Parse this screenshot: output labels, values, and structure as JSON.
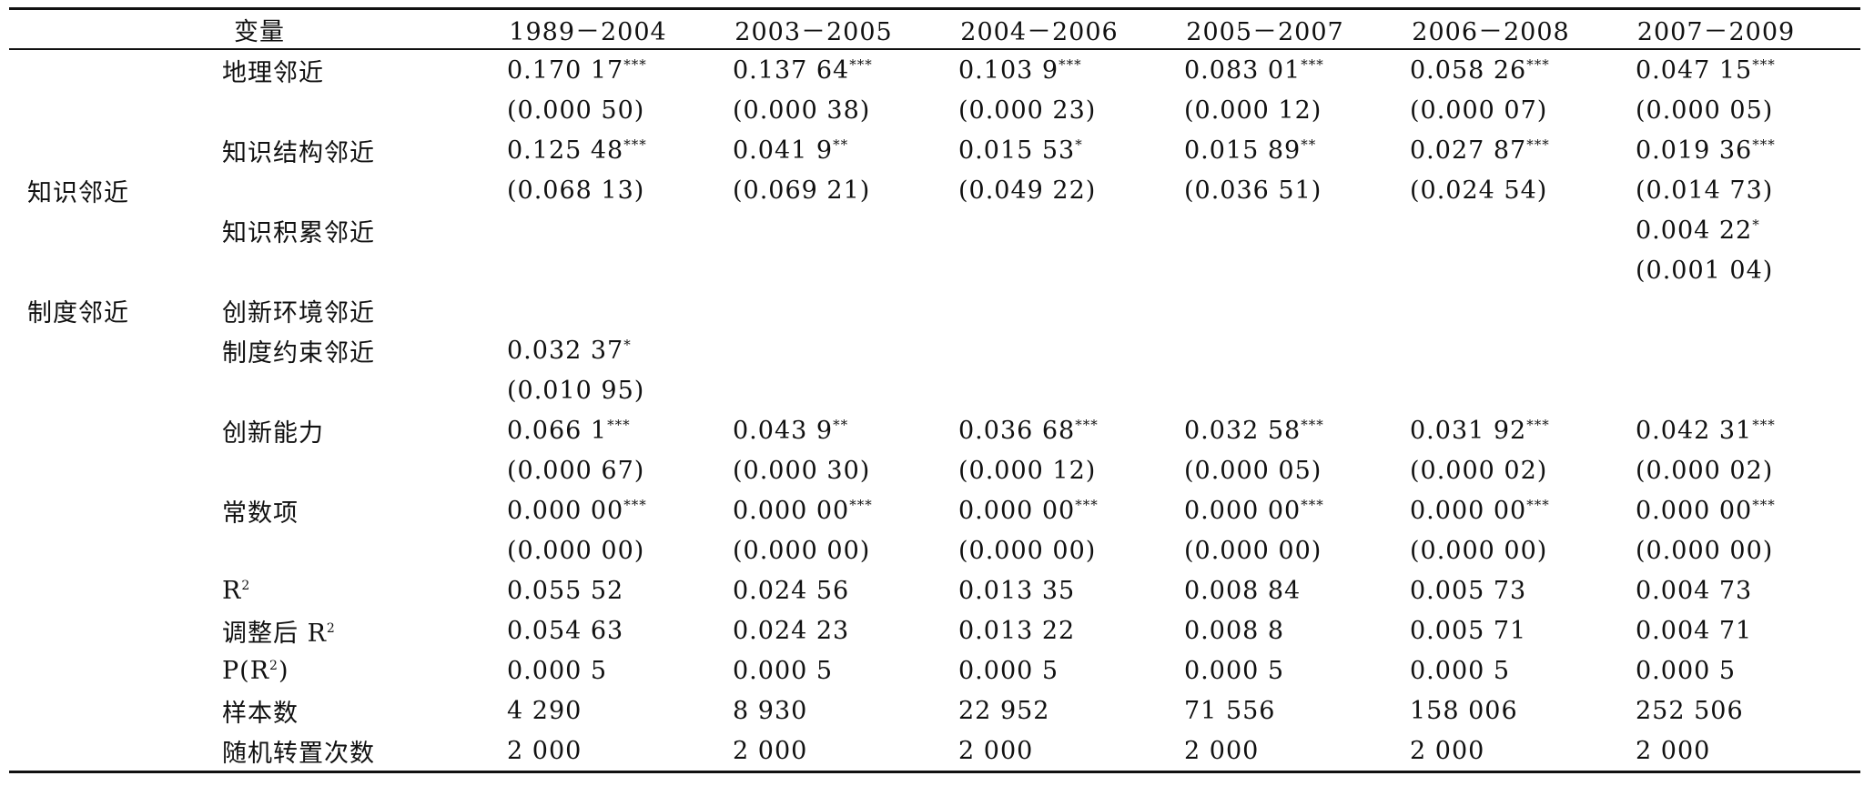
{
  "header": {
    "variable": "变量",
    "periods": [
      "1989－2004",
      "2003－2005",
      "2004－2006",
      "2005－2007",
      "2006－2008",
      "2007－2009"
    ]
  },
  "groups": {
    "knowledge": "知识邻近",
    "institution": "制度邻近"
  },
  "rows": [
    {
      "label": "地理邻近",
      "cells": [
        {
          "v": "0.170 17",
          "s": "***"
        },
        {
          "v": "0.137 64",
          "s": "***"
        },
        {
          "v": "0.103 9",
          "s": "***"
        },
        {
          "v": "0.083 01",
          "s": "***"
        },
        {
          "v": "0.058 26",
          "s": "***"
        },
        {
          "v": "0.047 15",
          "s": "***"
        }
      ]
    },
    {
      "label": "",
      "cells": [
        {
          "v": "(0.000 50)",
          "s": ""
        },
        {
          "v": "(0.000 38)",
          "s": ""
        },
        {
          "v": "(0.000 23)",
          "s": ""
        },
        {
          "v": "(0.000 12)",
          "s": ""
        },
        {
          "v": "(0.000 07)",
          "s": ""
        },
        {
          "v": "(0.000 05)",
          "s": ""
        }
      ]
    },
    {
      "label": "知识结构邻近",
      "cells": [
        {
          "v": "0.125 48",
          "s": "***"
        },
        {
          "v": "0.041 9",
          "s": "**"
        },
        {
          "v": "0.015 53",
          "s": "*"
        },
        {
          "v": "0.015 89",
          "s": "**"
        },
        {
          "v": "0.027 87",
          "s": "***"
        },
        {
          "v": "0.019 36",
          "s": "***"
        }
      ]
    },
    {
      "label": "",
      "cells": [
        {
          "v": "(0.068 13)",
          "s": ""
        },
        {
          "v": "(0.069 21)",
          "s": ""
        },
        {
          "v": "(0.049 22)",
          "s": ""
        },
        {
          "v": "(0.036 51)",
          "s": ""
        },
        {
          "v": "(0.024 54)",
          "s": ""
        },
        {
          "v": "(0.014 73)",
          "s": ""
        }
      ]
    },
    {
      "label": "知识积累邻近",
      "cells": [
        {
          "v": "",
          "s": ""
        },
        {
          "v": "",
          "s": ""
        },
        {
          "v": "",
          "s": ""
        },
        {
          "v": "",
          "s": ""
        },
        {
          "v": "",
          "s": ""
        },
        {
          "v": "0.004 22",
          "s": "*"
        }
      ]
    },
    {
      "label": "",
      "cells": [
        {
          "v": "",
          "s": ""
        },
        {
          "v": "",
          "s": ""
        },
        {
          "v": "",
          "s": ""
        },
        {
          "v": "",
          "s": ""
        },
        {
          "v": "",
          "s": ""
        },
        {
          "v": "(0.001 04)",
          "s": ""
        }
      ]
    },
    {
      "label": "创新环境邻近",
      "cells": [
        {
          "v": "",
          "s": ""
        },
        {
          "v": "",
          "s": ""
        },
        {
          "v": "",
          "s": ""
        },
        {
          "v": "",
          "s": ""
        },
        {
          "v": "",
          "s": ""
        },
        {
          "v": "",
          "s": ""
        }
      ]
    },
    {
      "label": "制度约束邻近",
      "cells": [
        {
          "v": "0.032 37",
          "s": "*"
        },
        {
          "v": "",
          "s": ""
        },
        {
          "v": "",
          "s": ""
        },
        {
          "v": "",
          "s": ""
        },
        {
          "v": "",
          "s": ""
        },
        {
          "v": "",
          "s": ""
        }
      ]
    },
    {
      "label": "",
      "cells": [
        {
          "v": "(0.010 95)",
          "s": ""
        },
        {
          "v": "",
          "s": ""
        },
        {
          "v": "",
          "s": ""
        },
        {
          "v": "",
          "s": ""
        },
        {
          "v": "",
          "s": ""
        },
        {
          "v": "",
          "s": ""
        }
      ]
    },
    {
      "label": "创新能力",
      "cells": [
        {
          "v": "0.066 1",
          "s": "***"
        },
        {
          "v": "0.043 9",
          "s": "**"
        },
        {
          "v": "0.036 68",
          "s": "***"
        },
        {
          "v": "0.032 58",
          "s": "***"
        },
        {
          "v": "0.031 92",
          "s": "***"
        },
        {
          "v": "0.042 31",
          "s": "***"
        }
      ]
    },
    {
      "label": "",
      "cells": [
        {
          "v": "(0.000 67)",
          "s": ""
        },
        {
          "v": "(0.000 30)",
          "s": ""
        },
        {
          "v": "(0.000 12)",
          "s": ""
        },
        {
          "v": "(0.000 05)",
          "s": ""
        },
        {
          "v": "(0.000 02)",
          "s": ""
        },
        {
          "v": "(0.000 02)",
          "s": ""
        }
      ]
    },
    {
      "label": "常数项",
      "cells": [
        {
          "v": "0.000 00",
          "s": "***"
        },
        {
          "v": "0.000 00",
          "s": "***"
        },
        {
          "v": "0.000 00",
          "s": "***"
        },
        {
          "v": "0.000 00",
          "s": "***"
        },
        {
          "v": "0.000 00",
          "s": "***"
        },
        {
          "v": "0.000 00",
          "s": "***"
        }
      ]
    },
    {
      "label": "",
      "cells": [
        {
          "v": "(0.000 00)",
          "s": ""
        },
        {
          "v": "(0.000 00)",
          "s": ""
        },
        {
          "v": "(0.000 00)",
          "s": ""
        },
        {
          "v": "(0.000 00)",
          "s": ""
        },
        {
          "v": "(0.000 00)",
          "s": ""
        },
        {
          "v": "(0.000 00)",
          "s": ""
        }
      ]
    },
    {
      "label": "R",
      "sup": "2",
      "after": "",
      "cells": [
        {
          "v": "0.055 52",
          "s": ""
        },
        {
          "v": "0.024 56",
          "s": ""
        },
        {
          "v": "0.013 35",
          "s": ""
        },
        {
          "v": "0.008 84",
          "s": ""
        },
        {
          "v": "0.005 73",
          "s": ""
        },
        {
          "v": "0.004 73",
          "s": ""
        }
      ]
    },
    {
      "label": "调整后 R",
      "sup": "2",
      "after": "",
      "cells": [
        {
          "v": "0.054 63",
          "s": ""
        },
        {
          "v": "0.024 23",
          "s": ""
        },
        {
          "v": "0.013 22",
          "s": ""
        },
        {
          "v": "0.008 8",
          "s": ""
        },
        {
          "v": "0.005 71",
          "s": ""
        },
        {
          "v": "0.004 71",
          "s": ""
        }
      ]
    },
    {
      "label": "P(R",
      "sup": "2",
      "after": ")",
      "cells": [
        {
          "v": "0.000 5",
          "s": ""
        },
        {
          "v": "0.000 5",
          "s": ""
        },
        {
          "v": "0.000 5",
          "s": ""
        },
        {
          "v": "0.000 5",
          "s": ""
        },
        {
          "v": "0.000 5",
          "s": ""
        },
        {
          "v": "0.000 5",
          "s": ""
        }
      ]
    },
    {
      "label": "样本数",
      "cells": [
        {
          "v": "4 290",
          "s": ""
        },
        {
          "v": "8 930",
          "s": ""
        },
        {
          "v": "22 952",
          "s": ""
        },
        {
          "v": "71 556",
          "s": ""
        },
        {
          "v": "158 006",
          "s": ""
        },
        {
          "v": "252 506",
          "s": ""
        }
      ]
    },
    {
      "label": "随机转置次数",
      "cells": [
        {
          "v": "2 000",
          "s": ""
        },
        {
          "v": "2 000",
          "s": ""
        },
        {
          "v": "2 000",
          "s": ""
        },
        {
          "v": "2 000",
          "s": ""
        },
        {
          "v": "2 000",
          "s": ""
        },
        {
          "v": "2 000",
          "s": ""
        }
      ]
    }
  ]
}
